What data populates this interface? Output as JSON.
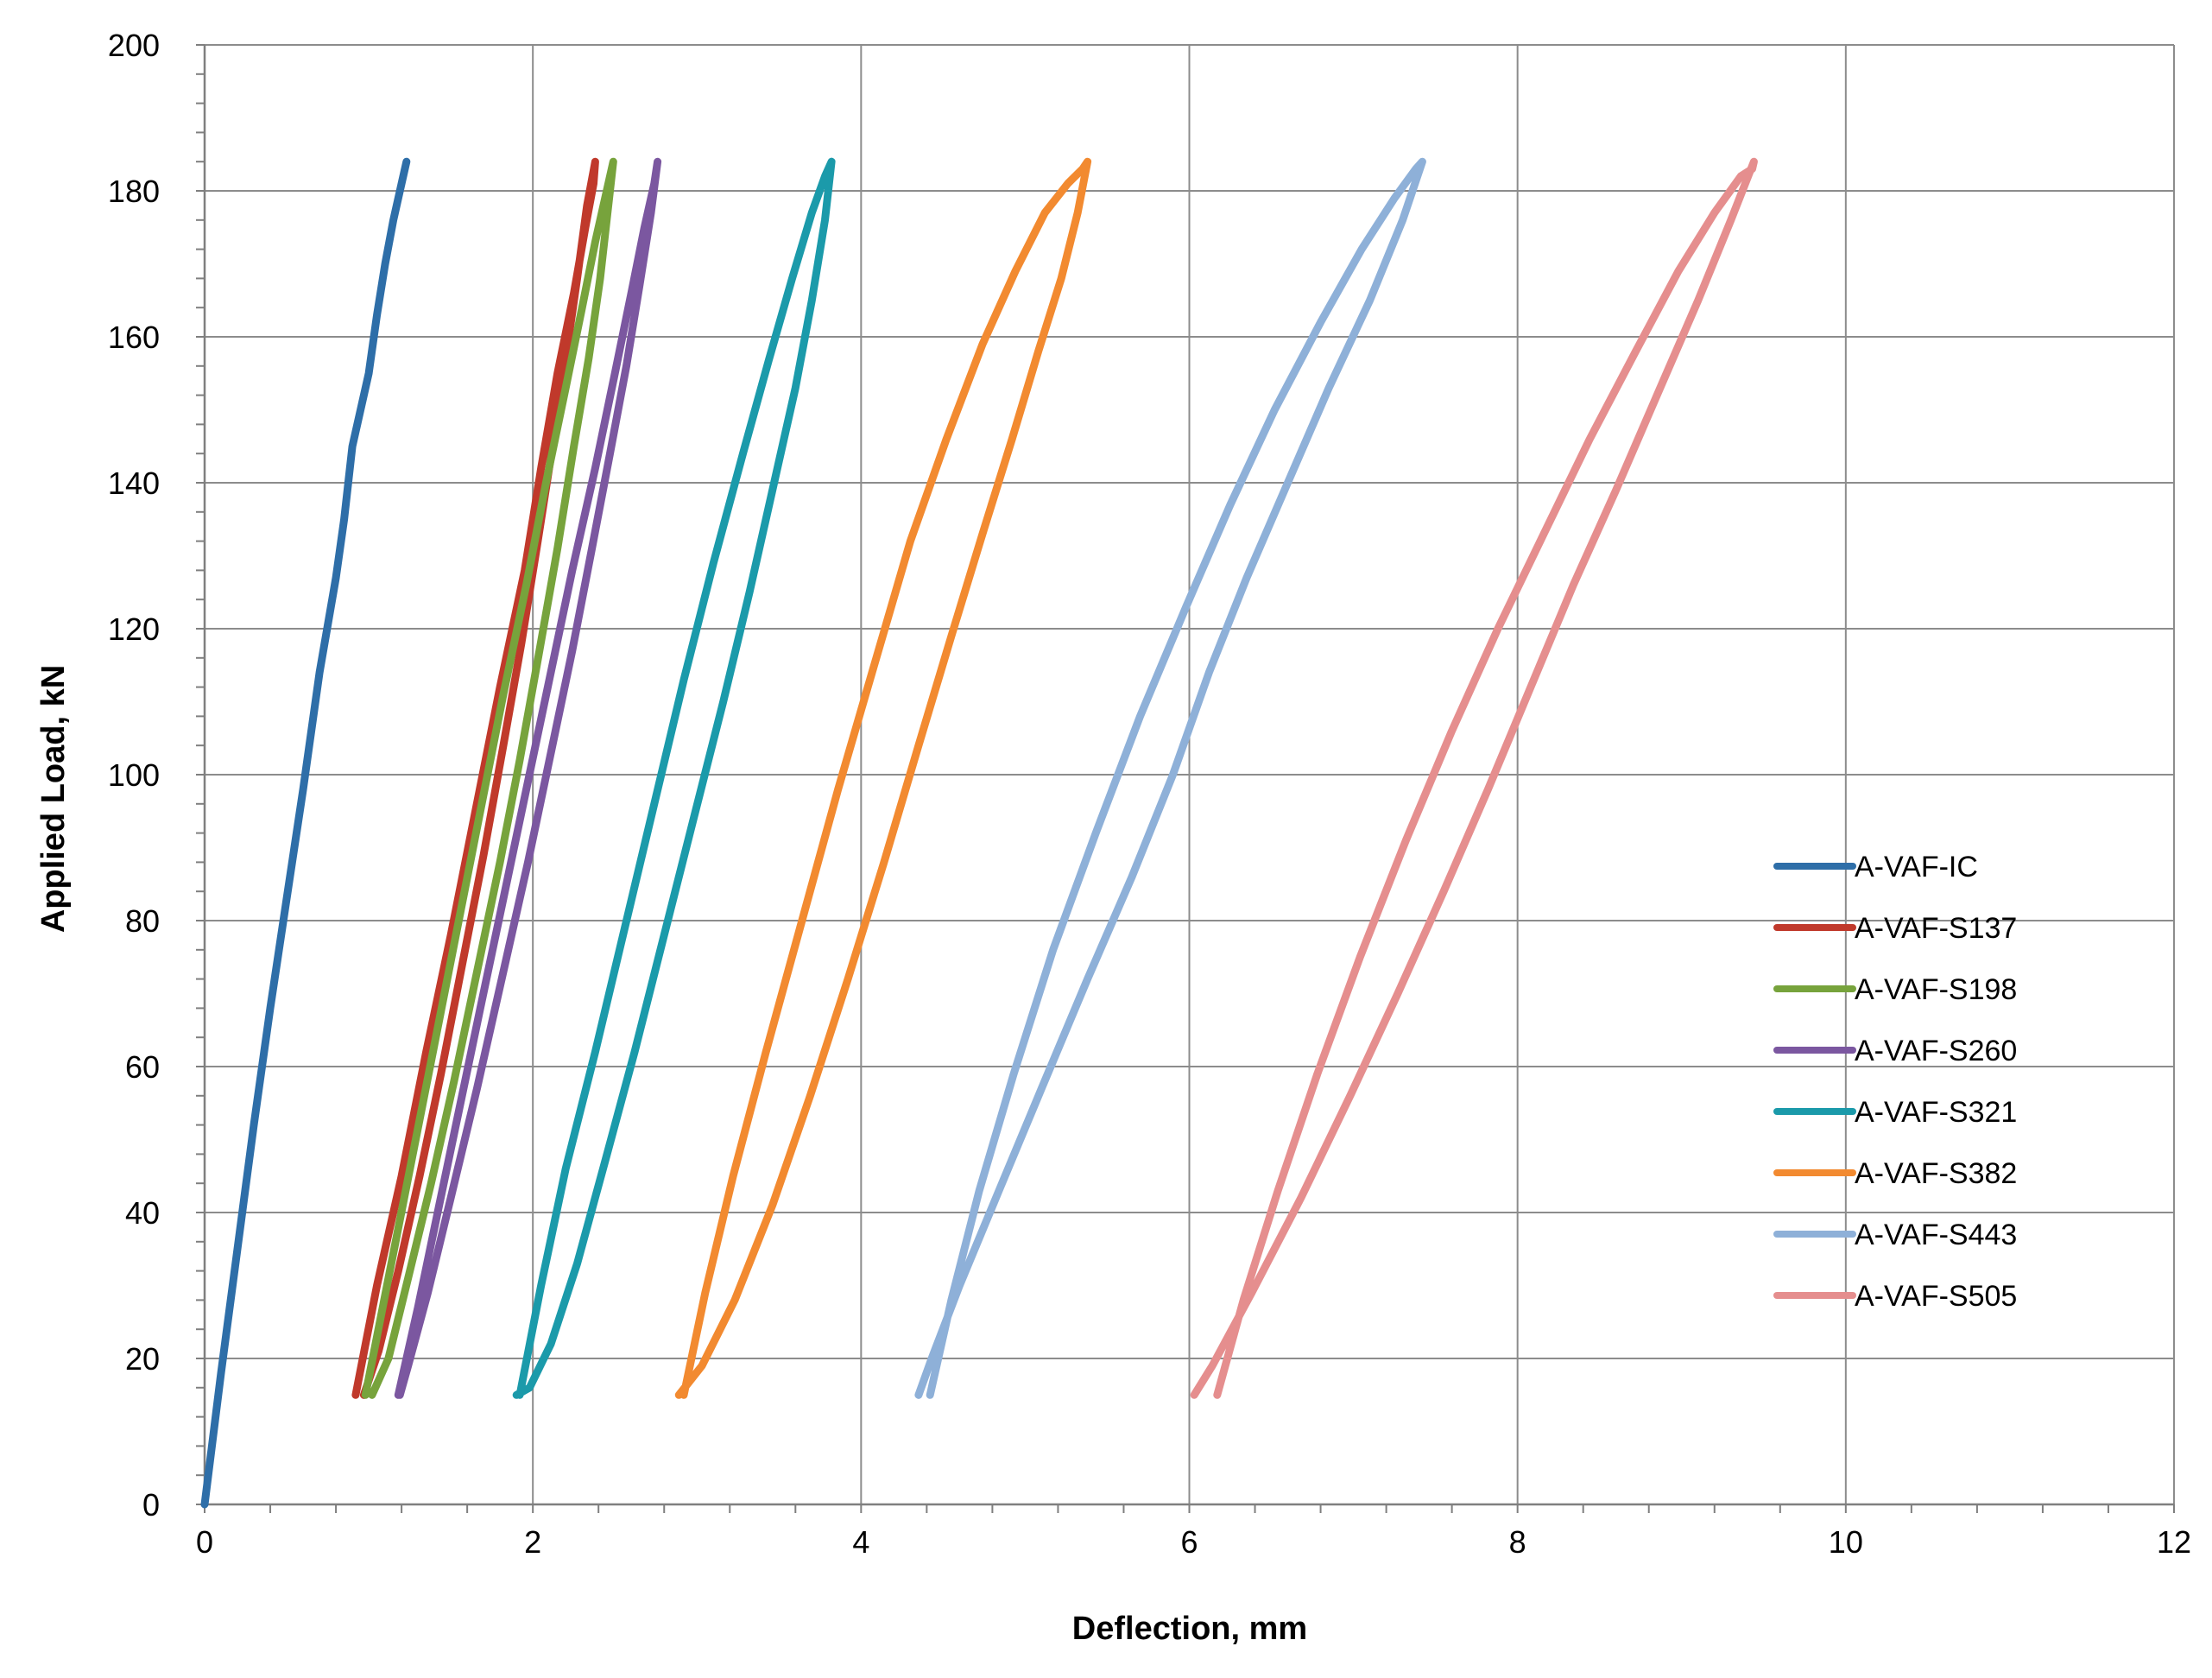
{
  "chart_data": {
    "type": "line",
    "title": "",
    "xlabel": "Deflection, mm",
    "ylabel": "Applied Load, kN",
    "xlim": [
      0,
      12
    ],
    "ylim": [
      0,
      200
    ],
    "x_ticks": [
      0,
      2,
      4,
      6,
      8,
      10,
      12
    ],
    "y_ticks": [
      0,
      20,
      40,
      60,
      80,
      100,
      120,
      140,
      160,
      180,
      200
    ],
    "x_tick_labels": [
      "0",
      "2",
      "4",
      "6",
      "8",
      "10",
      "12"
    ],
    "y_tick_labels": [
      "0",
      "20",
      "40",
      "60",
      "80",
      "100",
      "120",
      "140",
      "160",
      "180",
      "200"
    ],
    "grid": true,
    "legend_position": "right",
    "series": [
      {
        "name": "A-VAF-IC",
        "color": "#2E6EA8",
        "x": [
          0.0,
          0.1,
          0.2,
          0.3,
          0.4,
          0.5,
          0.6,
          0.7,
          0.8,
          0.85,
          0.9,
          1.0,
          1.05,
          1.1,
          1.15,
          1.2,
          1.23
        ],
        "y": [
          0,
          18,
          35,
          52,
          68,
          83,
          98,
          114,
          127,
          135,
          145,
          155,
          163,
          170,
          176,
          181,
          184
        ]
      },
      {
        "name": "A-VAF-S137",
        "color": "#C0392B",
        "x": [
          0.92,
          1.05,
          1.2,
          1.35,
          1.5,
          1.65,
          1.8,
          1.95,
          2.05,
          2.15,
          2.25,
          2.32,
          2.37,
          2.38,
          2.33,
          2.27,
          2.2,
          2.12,
          2.03,
          1.93,
          1.82,
          1.7,
          1.57,
          1.44,
          1.31,
          1.18,
          1.06,
          0.97
        ],
        "y": [
          15,
          30,
          45,
          62,
          78,
          95,
          112,
          128,
          142,
          155,
          166,
          175,
          181,
          184,
          178,
          168,
          157,
          145,
          132,
          118,
          104,
          89,
          74,
          59,
          45,
          32,
          21,
          15
        ]
      },
      {
        "name": "A-VAF-S198",
        "color": "#77A33C",
        "x": [
          0.98,
          1.12,
          1.26,
          1.4,
          1.54,
          1.68,
          1.82,
          1.96,
          2.08,
          2.2,
          2.3,
          2.38,
          2.45,
          2.49,
          2.46,
          2.41,
          2.34,
          2.25,
          2.15,
          2.04,
          1.92,
          1.8,
          1.66,
          1.52,
          1.38,
          1.24,
          1.12,
          1.02
        ],
        "y": [
          15,
          31,
          47,
          63,
          79,
          95,
          111,
          126,
          140,
          153,
          164,
          173,
          180,
          184,
          178,
          168,
          157,
          145,
          131,
          117,
          102,
          88,
          73,
          58,
          44,
          31,
          20,
          15
        ]
      },
      {
        "name": "A-VAF-S260",
        "color": "#7B57A0",
        "x": [
          1.18,
          1.3,
          1.42,
          1.55,
          1.68,
          1.82,
          1.96,
          2.1,
          2.24,
          2.38,
          2.5,
          2.6,
          2.68,
          2.74,
          2.76,
          2.72,
          2.65,
          2.57,
          2.47,
          2.36,
          2.24,
          2.11,
          1.97,
          1.82,
          1.66,
          1.5,
          1.36,
          1.24,
          1.19
        ],
        "y": [
          15,
          27,
          40,
          54,
          68,
          83,
          98,
          113,
          128,
          142,
          155,
          166,
          175,
          181,
          184,
          177,
          167,
          156,
          144,
          131,
          117,
          103,
          88,
          73,
          57,
          42,
          29,
          19,
          15
        ]
      },
      {
        "name": "A-VAF-S321",
        "color": "#1B9AAA",
        "x": [
          1.92,
          2.05,
          2.2,
          2.38,
          2.56,
          2.74,
          2.92,
          3.1,
          3.28,
          3.44,
          3.58,
          3.7,
          3.78,
          3.82,
          3.78,
          3.7,
          3.6,
          3.47,
          3.32,
          3.16,
          2.98,
          2.8,
          2.62,
          2.44,
          2.27,
          2.11,
          1.98,
          1.9
        ],
        "y": [
          15,
          30,
          46,
          62,
          79,
          96,
          113,
          129,
          144,
          157,
          168,
          177,
          182,
          184,
          176,
          165,
          153,
          140,
          125,
          110,
          94,
          78,
          62,
          47,
          33,
          22,
          16,
          15
        ]
      },
      {
        "name": "A-VAF-S382",
        "color": "#F28A30",
        "x": [
          2.92,
          3.05,
          3.22,
          3.42,
          3.64,
          3.86,
          4.08,
          4.3,
          4.52,
          4.74,
          4.94,
          5.12,
          5.26,
          5.35,
          5.38,
          5.32,
          5.22,
          5.08,
          4.92,
          4.74,
          4.55,
          4.35,
          4.14,
          3.92,
          3.69,
          3.46,
          3.23,
          3.03,
          2.89
        ],
        "y": [
          15,
          29,
          45,
          62,
          80,
          98,
          115,
          132,
          146,
          159,
          169,
          177,
          181,
          183,
          184,
          177,
          168,
          158,
          146,
          133,
          119,
          104,
          88,
          72,
          56,
          41,
          28,
          19,
          15
        ]
      },
      {
        "name": "A-VAF-S443",
        "color": "#8EB0D8",
        "x": [
          4.42,
          4.55,
          4.72,
          4.93,
          5.17,
          5.43,
          5.7,
          5.98,
          6.25,
          6.52,
          6.8,
          7.05,
          7.25,
          7.38,
          7.42,
          7.3,
          7.1,
          6.85,
          6.6,
          6.35,
          6.12,
          5.9,
          5.65,
          5.38,
          5.1,
          4.84,
          4.6,
          4.43,
          4.35
        ],
        "y": [
          15,
          28,
          43,
          59,
          76,
          92,
          108,
          123,
          137,
          150,
          162,
          172,
          179,
          183,
          184,
          176,
          165,
          153,
          140,
          127,
          114,
          100,
          86,
          72,
          57,
          43,
          30,
          20,
          15
        ]
      },
      {
        "name": "A-VAF-S505",
        "color": "#E58E8E",
        "x": [
          6.17,
          6.33,
          6.54,
          6.78,
          7.04,
          7.32,
          7.6,
          7.88,
          8.16,
          8.44,
          8.72,
          8.98,
          9.2,
          9.36,
          9.43,
          9.44,
          9.3,
          9.1,
          8.85,
          8.6,
          8.34,
          8.08,
          7.82,
          7.55,
          7.27,
          6.98,
          6.68,
          6.38,
          6.14,
          6.03
        ],
        "y": [
          15,
          28,
          43,
          59,
          75,
          91,
          106,
          120,
          133,
          146,
          158,
          169,
          177,
          182,
          183,
          184,
          176,
          165,
          152,
          139,
          126,
          112,
          98,
          84,
          70,
          56,
          42,
          29,
          19,
          15
        ]
      }
    ]
  }
}
